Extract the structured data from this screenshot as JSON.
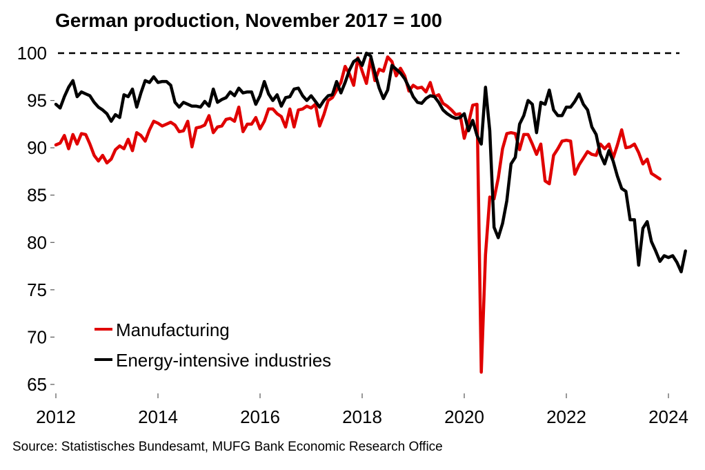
{
  "chart_data": {
    "type": "line",
    "title": "German production, November 2017 = 100",
    "source": "Source: Statistisches Bundesamt, MUFG Bank Economic Research Office",
    "xlabel": "",
    "ylabel": "",
    "x_start": "2012-01",
    "x_end": "2023-11",
    "frequency": "monthly",
    "xlim": [
      2012,
      2024
    ],
    "ylim": [
      65,
      100
    ],
    "xticks": [
      "2012",
      "2014",
      "2016",
      "2018",
      "2020",
      "2022",
      "2024"
    ],
    "yticks": [
      "65",
      "70",
      "75",
      "80",
      "85",
      "90",
      "95",
      "100"
    ],
    "reference_line": {
      "value": 100,
      "style": "dashed"
    },
    "grid": false,
    "legend_position": "bottom-left",
    "series": [
      {
        "name": "Manufacturing",
        "color": "#e00000",
        "values": [
          90.3,
          90.5,
          91.3,
          89.9,
          91.4,
          90.4,
          91.5,
          91.4,
          90.4,
          89.2,
          88.6,
          89.2,
          88.4,
          88.8,
          89.8,
          90.2,
          89.9,
          90.9,
          89.7,
          91.6,
          91.3,
          90.7,
          91.9,
          92.8,
          92.6,
          92.3,
          92.5,
          92.7,
          92.4,
          91.7,
          91.8,
          92.8,
          90.1,
          92.1,
          92.2,
          92.4,
          93.4,
          91.6,
          92.2,
          92.3,
          93.0,
          93.1,
          92.8,
          94.3,
          91.7,
          92.5,
          92.5,
          93.2,
          92.0,
          92.8,
          94.1,
          94.1,
          93.6,
          93.3,
          92.2,
          94.1,
          92.2,
          94.0,
          94.1,
          94.4,
          94.2,
          94.6,
          92.3,
          93.5,
          95.0,
          95.3,
          96.1,
          96.9,
          98.6,
          97.8,
          96.6,
          99.5,
          98.1,
          96.8,
          99.4,
          97.1,
          98.3,
          98.1,
          99.6,
          99.1,
          97.6,
          98.4,
          97.6,
          96.0,
          96.6,
          96.3,
          96.4,
          95.9,
          96.9,
          95.4,
          95.6,
          94.7,
          94.4,
          94.0,
          93.5,
          93.6,
          91.0,
          92.6,
          94.5,
          94.6,
          66.3,
          78.7,
          84.8,
          84.6,
          86.8,
          89.9,
          91.5,
          91.6,
          91.5,
          89.8,
          91.4,
          91.4,
          90.4,
          89.3,
          90.4,
          86.5,
          86.2,
          89.2,
          89.9,
          90.7,
          90.8,
          90.7,
          87.2,
          88.2,
          88.9,
          89.6,
          89.3,
          89.2,
          90.4,
          89.9,
          90.4,
          88.9,
          90.3,
          91.9,
          90.0,
          90.1,
          90.4,
          89.5,
          88.3,
          88.8,
          87.3,
          87.0,
          86.7
        ]
      },
      {
        "name": "Energy-intensive industries",
        "color": "#000000",
        "values": [
          94.6,
          94.2,
          95.4,
          96.4,
          97.1,
          95.4,
          95.9,
          95.7,
          95.5,
          94.8,
          94.3,
          94.0,
          93.6,
          92.8,
          93.5,
          93.2,
          95.6,
          95.4,
          96.2,
          94.3,
          95.8,
          97.1,
          96.9,
          97.5,
          96.9,
          97.0,
          97.0,
          96.6,
          94.8,
          94.3,
          94.8,
          94.6,
          94.4,
          94.4,
          94.3,
          94.9,
          94.4,
          96.2,
          94.8,
          95.1,
          95.3,
          95.9,
          95.5,
          96.3,
          95.8,
          95.9,
          95.9,
          94.6,
          95.5,
          97.0,
          95.7,
          95.0,
          95.6,
          94.4,
          95.3,
          95.4,
          96.2,
          96.3,
          95.5,
          95.0,
          95.5,
          94.9,
          94.3,
          95.0,
          95.5,
          95.6,
          97.0,
          95.8,
          96.9,
          98.2,
          99.1,
          99.4,
          98.7,
          100.0,
          99.7,
          97.9,
          96.3,
          95.2,
          96.1,
          98.7,
          98.3,
          97.9,
          97.3,
          96.4,
          95.4,
          94.8,
          94.7,
          95.2,
          95.5,
          95.4,
          94.8,
          94.0,
          93.6,
          93.3,
          93.1,
          93.2,
          93.6,
          91.8,
          92.9,
          91.3,
          90.4,
          96.4,
          91.8,
          81.6,
          80.5,
          82.0,
          84.4,
          88.3,
          89.0,
          92.5,
          93.4,
          95.0,
          94.6,
          91.6,
          94.8,
          94.6,
          96.1,
          94.0,
          93.4,
          93.4,
          94.3,
          94.3,
          94.9,
          95.7,
          94.6,
          94.0,
          92.2,
          91.4,
          89.3,
          88.3,
          89.7,
          88.6,
          87.0,
          85.7,
          85.4,
          82.4,
          82.4,
          77.6,
          81.5,
          82.2,
          80.1,
          79.1,
          78.0,
          78.6,
          78.4,
          78.6,
          77.9,
          76.9,
          79.1
        ]
      }
    ]
  }
}
